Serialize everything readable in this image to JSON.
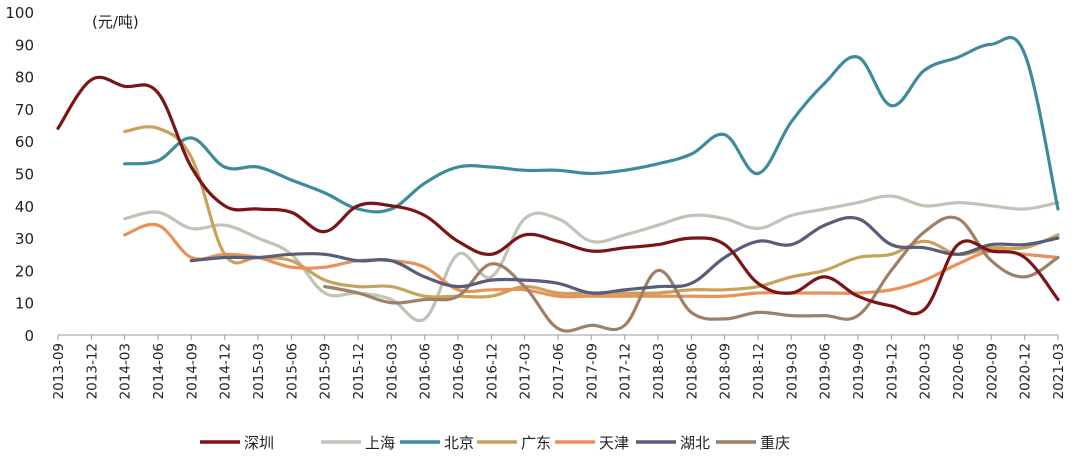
{
  "chart_data": {
    "type": "line",
    "unit_label": "(元/吨)",
    "ylim": [
      0,
      100
    ],
    "y_ticks": [
      0,
      10,
      20,
      30,
      40,
      50,
      60,
      70,
      80,
      90,
      100
    ],
    "categories": [
      "2013-09",
      "2013-12",
      "2014-03",
      "2014-06",
      "2014-09",
      "2014-12",
      "2015-03",
      "2015-06",
      "2015-09",
      "2015-12",
      "2016-03",
      "2016-06",
      "2016-09",
      "2016-12",
      "2017-03",
      "2017-06",
      "2017-09",
      "2017-12",
      "2018-03",
      "2018-06",
      "2018-09",
      "2018-12",
      "2019-03",
      "2019-06",
      "2019-09",
      "2019-12",
      "2020-03",
      "2020-06",
      "2020-09",
      "2020-12",
      "2021-03"
    ],
    "legend_position": "bottom",
    "series": [
      {
        "name": "深圳",
        "color": "#7B1416",
        "values": [
          64,
          79,
          77,
          75,
          52,
          40,
          39,
          38,
          32,
          40,
          40,
          37,
          29,
          25,
          31,
          29,
          26,
          27,
          28,
          30,
          28,
          16,
          13,
          18,
          12,
          9,
          8,
          28,
          26,
          24,
          11
        ]
      },
      {
        "name": "上海",
        "color": "#BFC4B6",
        "values": [
          null,
          null,
          36,
          38,
          33,
          34,
          30,
          25,
          13,
          13,
          11,
          5,
          25,
          18,
          36,
          36,
          29,
          31,
          34,
          37,
          36,
          33,
          37,
          39,
          41,
          43,
          40,
          41,
          40,
          39,
          41
        ]
      },
      {
        "name": "北京",
        "color": "#3E8B9C",
        "values": [
          null,
          null,
          53,
          54,
          61,
          52,
          52,
          48,
          44,
          39,
          39,
          47,
          52,
          52,
          51,
          51,
          50,
          51,
          53,
          56,
          62,
          50,
          66,
          78,
          86,
          71,
          82,
          86,
          90,
          87,
          39
        ]
      },
      {
        "name": "广东",
        "color": "#C9A15A",
        "values": [
          null,
          null,
          63,
          64,
          55,
          25,
          24,
          23,
          17,
          15,
          15,
          12,
          12,
          12,
          15,
          13,
          13,
          13,
          13,
          14,
          14,
          15,
          18,
          20,
          24,
          25,
          29,
          25,
          27,
          27,
          31
        ]
      },
      {
        "name": "天津",
        "color": "#E8915A",
        "values": [
          null,
          null,
          31,
          34,
          24,
          25,
          24,
          21,
          21,
          23,
          23,
          21,
          14,
          14,
          14,
          12,
          12,
          12,
          12,
          12,
          12,
          13,
          13,
          13,
          13,
          14,
          17,
          22,
          26,
          25,
          24
        ]
      },
      {
        "name": "湖北",
        "color": "#595C7A",
        "values": [
          null,
          null,
          null,
          null,
          23,
          24,
          24,
          25,
          25,
          23,
          23,
          18,
          15,
          17,
          17,
          16,
          13,
          14,
          15,
          16,
          24,
          29,
          28,
          34,
          36,
          28,
          27,
          25,
          28,
          28,
          30
        ]
      },
      {
        "name": "重庆",
        "color": "#9E8068",
        "values": [
          null,
          null,
          null,
          null,
          null,
          null,
          null,
          null,
          15,
          13,
          10,
          11,
          12,
          22,
          15,
          2,
          3,
          3,
          20,
          7,
          5,
          7,
          6,
          6,
          6,
          20,
          32,
          36,
          23,
          18,
          24
        ]
      }
    ]
  }
}
